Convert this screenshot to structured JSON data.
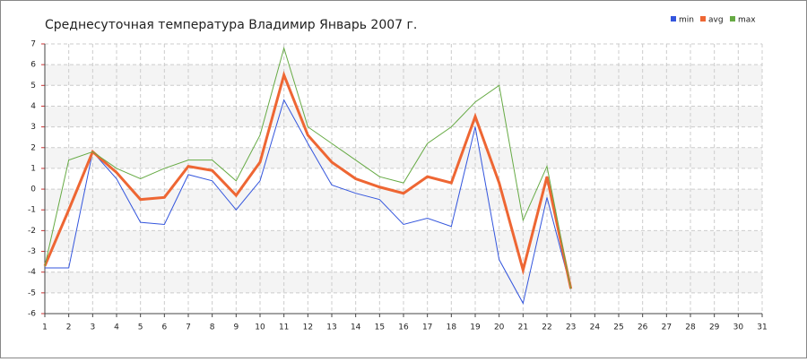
{
  "chart_data": {
    "type": "line",
    "title": "Среднесуточная температура Владимир  Январь 2007 г.",
    "x": [
      1,
      2,
      3,
      4,
      5,
      6,
      7,
      8,
      9,
      10,
      11,
      12,
      13,
      14,
      15,
      16,
      17,
      18,
      19,
      20,
      21,
      22,
      23
    ],
    "series": [
      {
        "name": "min",
        "color": "#3355dd",
        "values": [
          -3.8,
          -3.8,
          1.8,
          0.5,
          -1.6,
          -1.7,
          0.7,
          0.4,
          -1.0,
          0.4,
          4.3,
          2.2,
          0.2,
          -0.2,
          -0.5,
          -1.7,
          -1.4,
          -1.8,
          3.0,
          -3.4,
          -5.5,
          -0.4,
          -4.8
        ]
      },
      {
        "name": "avg",
        "color": "#ee6633",
        "values": [
          -3.7,
          -1.0,
          1.8,
          0.8,
          -0.5,
          -0.4,
          1.1,
          0.9,
          -0.3,
          1.3,
          5.5,
          2.6,
          1.3,
          0.5,
          0.1,
          -0.2,
          0.6,
          0.3,
          3.5,
          0.3,
          -3.9,
          0.6,
          -4.8
        ]
      },
      {
        "name": "max",
        "color": "#66aa44",
        "values": [
          -3.7,
          1.4,
          1.8,
          1.0,
          0.5,
          1.0,
          1.4,
          1.4,
          0.4,
          2.6,
          6.8,
          3.0,
          2.2,
          1.4,
          0.6,
          0.3,
          2.2,
          3.0,
          4.2,
          5.0,
          -1.5,
          1.1,
          -4.8
        ]
      }
    ],
    "xlim": [
      1,
      31
    ],
    "xticks": [
      1,
      2,
      3,
      4,
      5,
      6,
      7,
      8,
      9,
      10,
      11,
      12,
      13,
      14,
      15,
      16,
      17,
      18,
      19,
      20,
      21,
      22,
      23,
      24,
      25,
      26,
      27,
      28,
      29,
      30,
      31
    ],
    "ylim": [
      -6,
      7
    ],
    "yticks": [
      -6,
      -5,
      -4,
      -3,
      -2,
      -1,
      0,
      1,
      2,
      3,
      4,
      5,
      6,
      7
    ],
    "grid": true,
    "legend": "top-right"
  }
}
